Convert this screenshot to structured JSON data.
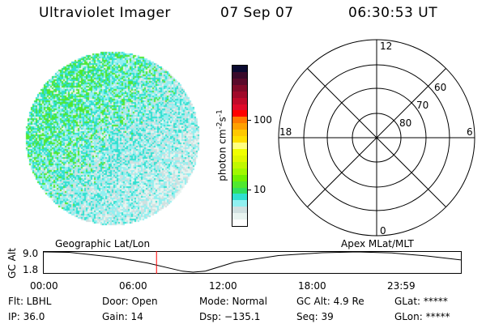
{
  "header": {
    "title": "Ultraviolet Imager",
    "date": "07 Sep 07",
    "time": "06:30:53 UT"
  },
  "colorbar": {
    "label": "photon cm",
    "label_sup1": "-2",
    "label_mid": "s",
    "label_sup2": "-1",
    "ticks": [
      "100",
      "10"
    ],
    "scale": "log",
    "colors": [
      "#0a0a30",
      "#3a0a2a",
      "#5a0a2a",
      "#800a28",
      "#a00a2a",
      "#c00a2a",
      "#e00a2a",
      "#ff0000",
      "#ff7a00",
      "#ffa000",
      "#ffc800",
      "#ffe000",
      "#ffff80",
      "#f0ff00",
      "#e0f800",
      "#c0f800",
      "#a0f800",
      "#70f000",
      "#50e830",
      "#30e060",
      "#30e0d0",
      "#90f0f0",
      "#d0e0e0",
      "#e8f4f0",
      "#ffffff"
    ]
  },
  "polar_plot": {
    "mlt_labels": {
      "top": "12",
      "bottom": "0",
      "left": "18",
      "right": "6"
    },
    "lat_labels": [
      "60",
      "70",
      "80"
    ]
  },
  "time_plot": {
    "left_label": "Geographic Lat/Lon",
    "right_label": "Apex MLat/MLT",
    "y_axis_label": "GC Alt",
    "y_ticks": [
      "9.0",
      "1.8"
    ],
    "x_ticks": [
      "00:00",
      "06:00",
      "12:00",
      "18:00",
      "23:59"
    ],
    "current_time_marker_hours": 6.51,
    "marker_color": "#ff0000"
  },
  "status": {
    "flt": "Flt: LBHL",
    "ip": "IP: 36.0",
    "door": "Door: Open",
    "gain": "Gain: 14",
    "mode": "Mode: Normal",
    "dsp": "Dsp: −135.1",
    "gcalt": "GC Alt: 4.9 Re",
    "seq": "Seq: 39",
    "glat": "GLat: *****",
    "glon": "GLon: *****"
  }
}
